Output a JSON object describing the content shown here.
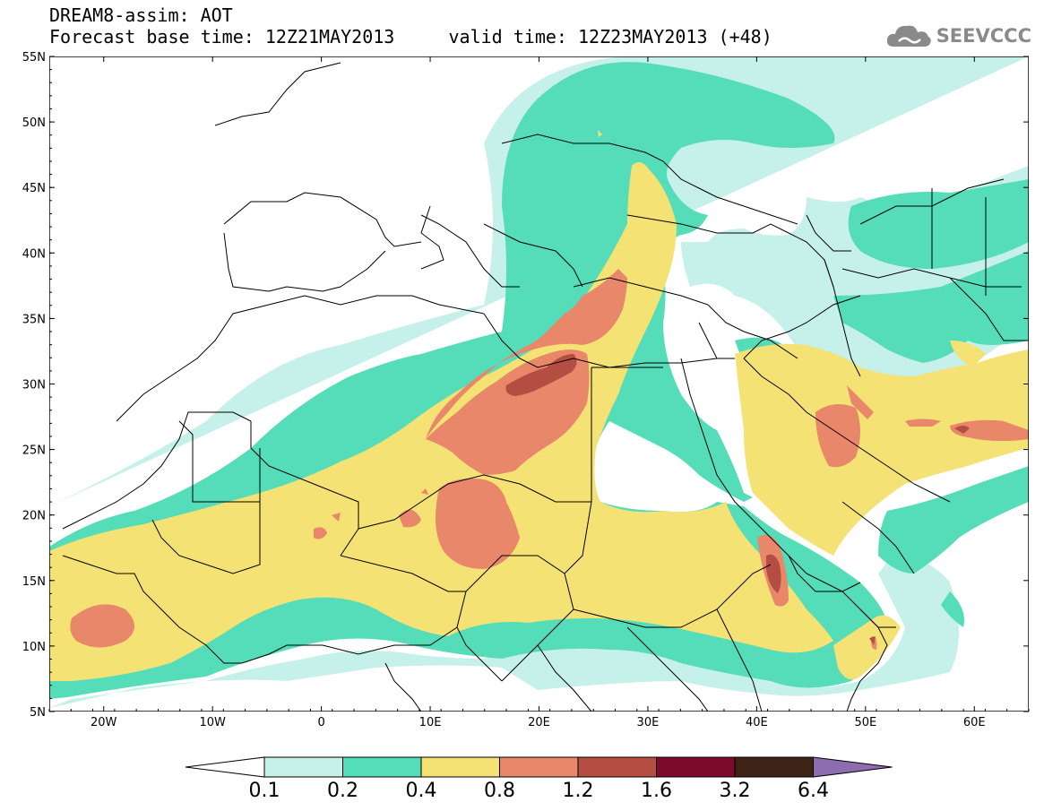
{
  "header": {
    "line1": "DREAM8-assim: AOT",
    "line2": "Forecast base time: 12Z21MAY2013     valid time: 12Z23MAY2013 (+48)",
    "logo_text": "SEEVCCC"
  },
  "map": {
    "region": {
      "lon_min": -25,
      "lon_max": 65,
      "lat_min": 5,
      "lat_max": 55
    },
    "lon_ticks": [
      {
        "value": -20,
        "label": "20W"
      },
      {
        "value": -10,
        "label": "10W"
      },
      {
        "value": 0,
        "label": "0"
      },
      {
        "value": 10,
        "label": "10E"
      },
      {
        "value": 20,
        "label": "20E"
      },
      {
        "value": 30,
        "label": "30E"
      },
      {
        "value": 40,
        "label": "40E"
      },
      {
        "value": 50,
        "label": "50E"
      },
      {
        "value": 60,
        "label": "60E"
      }
    ],
    "lat_ticks": [
      {
        "value": 55,
        "label": "55N"
      },
      {
        "value": 50,
        "label": "50N"
      },
      {
        "value": 45,
        "label": "45N"
      },
      {
        "value": 40,
        "label": "40N"
      },
      {
        "value": 35,
        "label": "35N"
      },
      {
        "value": 30,
        "label": "30N"
      },
      {
        "value": 25,
        "label": "25N"
      },
      {
        "value": 20,
        "label": "20N"
      },
      {
        "value": 15,
        "label": "15N"
      },
      {
        "value": 10,
        "label": "10N"
      },
      {
        "value": 5,
        "label": "5N"
      }
    ]
  },
  "colorbar": {
    "levels": [
      "0.1",
      "0.2",
      "0.4",
      "0.8",
      "1.2",
      "1.6",
      "3.2",
      "6.4"
    ],
    "colors": [
      "#ffffff",
      "#c6f0ea",
      "#55dcb8",
      "#f5e275",
      "#e8876a",
      "#b44d42",
      "#7d0a2a",
      "#3d2416",
      "#8e6cb0"
    ]
  }
}
